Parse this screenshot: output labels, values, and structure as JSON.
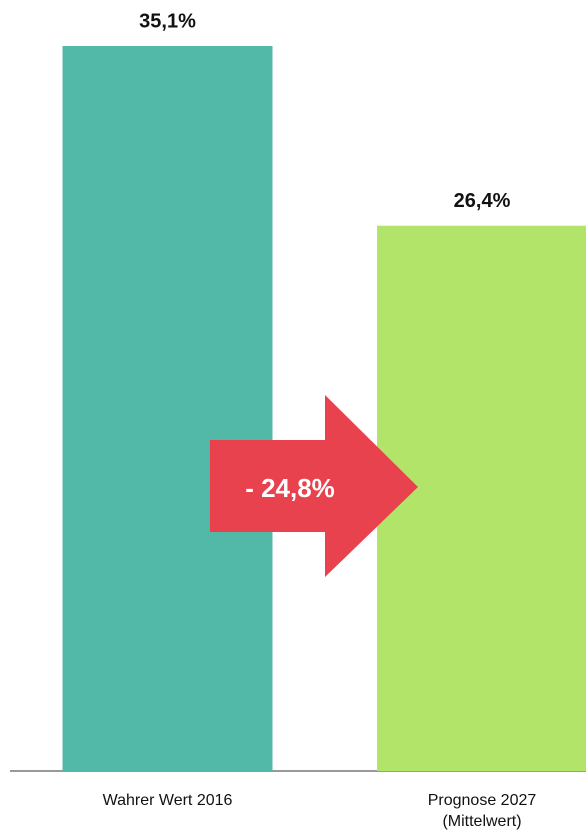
{
  "chart_data": {
    "type": "bar",
    "categories": [
      "Wahrer Wert 2016",
      "Prognose 2027 (Mittelwert)"
    ],
    "values": [
      35.1,
      26.4
    ],
    "value_labels": [
      "35,1%",
      "26,4%"
    ],
    "colors": [
      "#52b9a9",
      "#b3e46a"
    ],
    "annotation": "- 24,8%",
    "annotation_color": "#e8424f"
  }
}
